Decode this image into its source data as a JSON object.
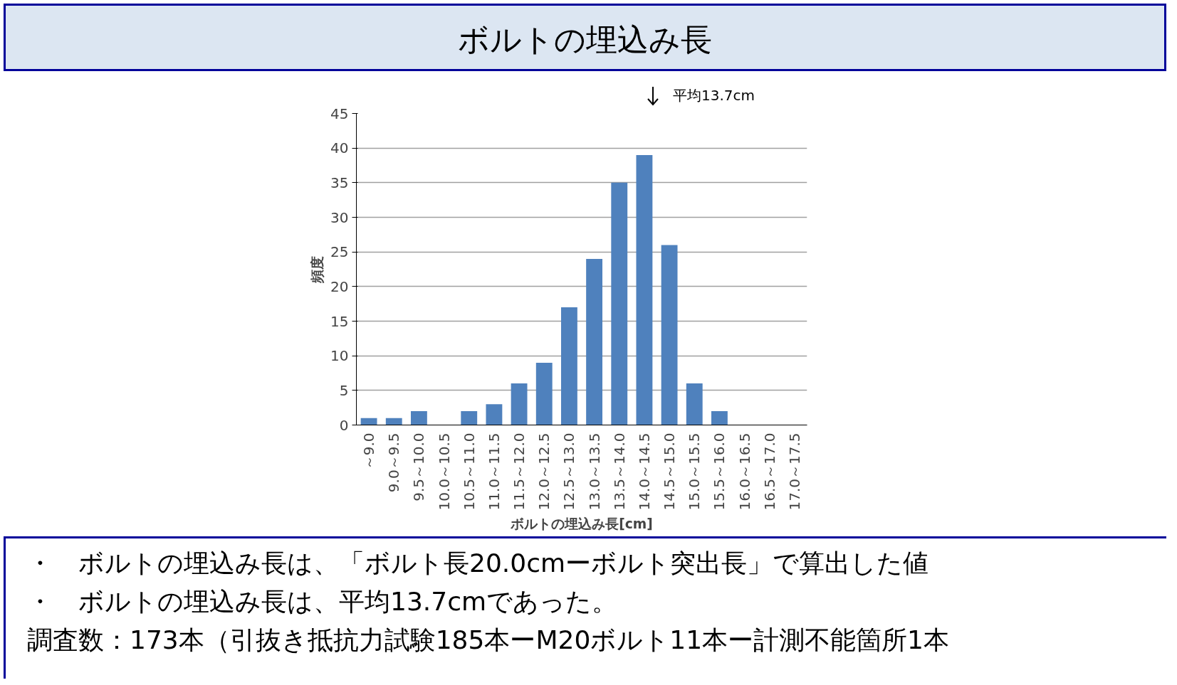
{
  "chart_data": {
    "type": "bar",
    "title": "ボルトの埋込み長",
    "categories": [
      "～9.0",
      "9.0～9.5",
      "9.5～10.0",
      "10.0～10.5",
      "10.5～11.0",
      "11.0～11.5",
      "11.5～12.0",
      "12.0～12.5",
      "12.5～13.0",
      "13.0～13.5",
      "13.5～14.0",
      "14.0～14.5",
      "14.5～15.0",
      "15.0～15.5",
      "15.5～16.0",
      "16.0～16.5",
      "16.5～17.0",
      "17.0～17.5"
    ],
    "values": [
      1,
      1,
      2,
      0,
      2,
      3,
      6,
      9,
      17,
      24,
      35,
      39,
      26,
      6,
      2,
      0,
      0,
      0
    ],
    "color": "#4f81bd",
    "xlabel": "ボルトの埋込み長[cm]",
    "ylabel": "頻度",
    "ylim": [
      0,
      45
    ],
    "yticks": [
      0,
      5,
      10,
      15,
      20,
      25,
      30,
      35,
      40,
      45
    ],
    "grid": "y",
    "annotations": [
      "平均13.7cm",
      "・　ボルトの埋込み長は、「ボルト長20.0cmーボルト突出長」で算出した値",
      "・　ボルトの埋込み長は、平均13.7cmであった。",
      "調査数：173本（引抜き抵抗力試験185本ーM20ボルト11本ー計測不能箇所1本"
    ]
  }
}
